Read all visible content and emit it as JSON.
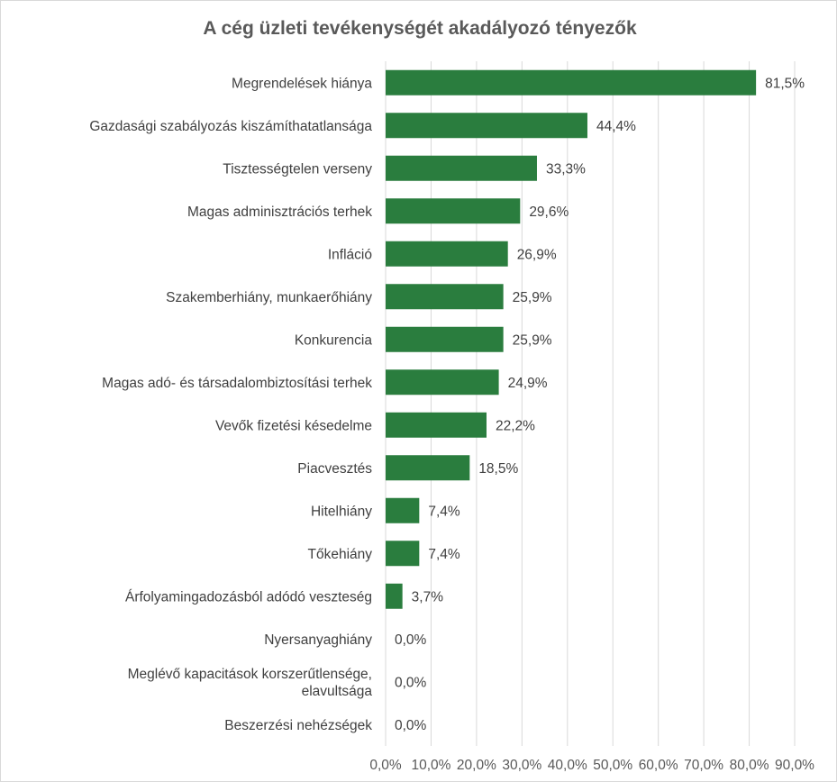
{
  "chart_data": {
    "type": "bar",
    "orientation": "horizontal",
    "title": "A cég üzleti tevékenységét akadályozó tényezők",
    "categories": [
      "Megrendelések hiánya",
      "Gazdasági szabályozás kiszámíthatatlansága",
      "Tisztességtelen verseny",
      "Magas adminisztrációs terhek",
      "Infláció",
      "Szakemberhiány, munkaerőhiány",
      "Konkurencia",
      "Magas adó- és társadalombiztosítási terhek",
      "Vevők fizetési késedelme",
      "Piacvesztés",
      "Hitelhiány",
      "Tőkehiány",
      "Árfolyamingadozásból adódó veszteség",
      "Nyersanyaghiány",
      "Meglévő kapacitások korszerűtlensége, elavultsága",
      "Beszerzési nehézségek"
    ],
    "category_lines": [
      [
        "Megrendelések hiánya"
      ],
      [
        "Gazdasági szabályozás kiszámíthatatlansága"
      ],
      [
        "Tisztességtelen verseny"
      ],
      [
        "Magas adminisztrációs terhek"
      ],
      [
        "Infláció"
      ],
      [
        "Szakemberhiány, munkaerőhiány"
      ],
      [
        "Konkurencia"
      ],
      [
        "Magas adó- és társadalombiztosítási terhek"
      ],
      [
        "Vevők fizetési késedelme"
      ],
      [
        "Piacvesztés"
      ],
      [
        "Hitelhiány"
      ],
      [
        "Tőkehiány"
      ],
      [
        "Árfolyamingadozásból adódó veszteség"
      ],
      [
        "Nyersanyaghiány"
      ],
      [
        "Meglévő kapacitások korszerűtlensége,",
        "elavultsága"
      ],
      [
        "Beszerzési nehézségek"
      ]
    ],
    "values": [
      81.5,
      44.4,
      33.3,
      29.6,
      26.9,
      25.9,
      25.9,
      24.9,
      22.2,
      18.5,
      7.4,
      7.4,
      3.7,
      0.0,
      0.0,
      0.0
    ],
    "data_labels": [
      "81,5%",
      "44,4%",
      "33,3%",
      "29,6%",
      "26,9%",
      "25,9%",
      "25,9%",
      "24,9%",
      "22,2%",
      "18,5%",
      "7,4%",
      "7,4%",
      "3,7%",
      "0,0%",
      "0,0%",
      "0,0%"
    ],
    "xlim": [
      0,
      90
    ],
    "x_ticks": [
      0,
      10,
      20,
      30,
      40,
      50,
      60,
      70,
      80,
      90
    ],
    "x_tick_labels": [
      "0,0%",
      "10,0%",
      "20,0%",
      "30,0%",
      "40,0%",
      "50,0%",
      "60,0%",
      "70,0%",
      "80,0%",
      "90,0%"
    ],
    "xlabel": "",
    "ylabel": "",
    "grid": "vertical",
    "legend": "none",
    "bar_color": "#2a7d3e",
    "grid_color": "#d9d9d9"
  }
}
